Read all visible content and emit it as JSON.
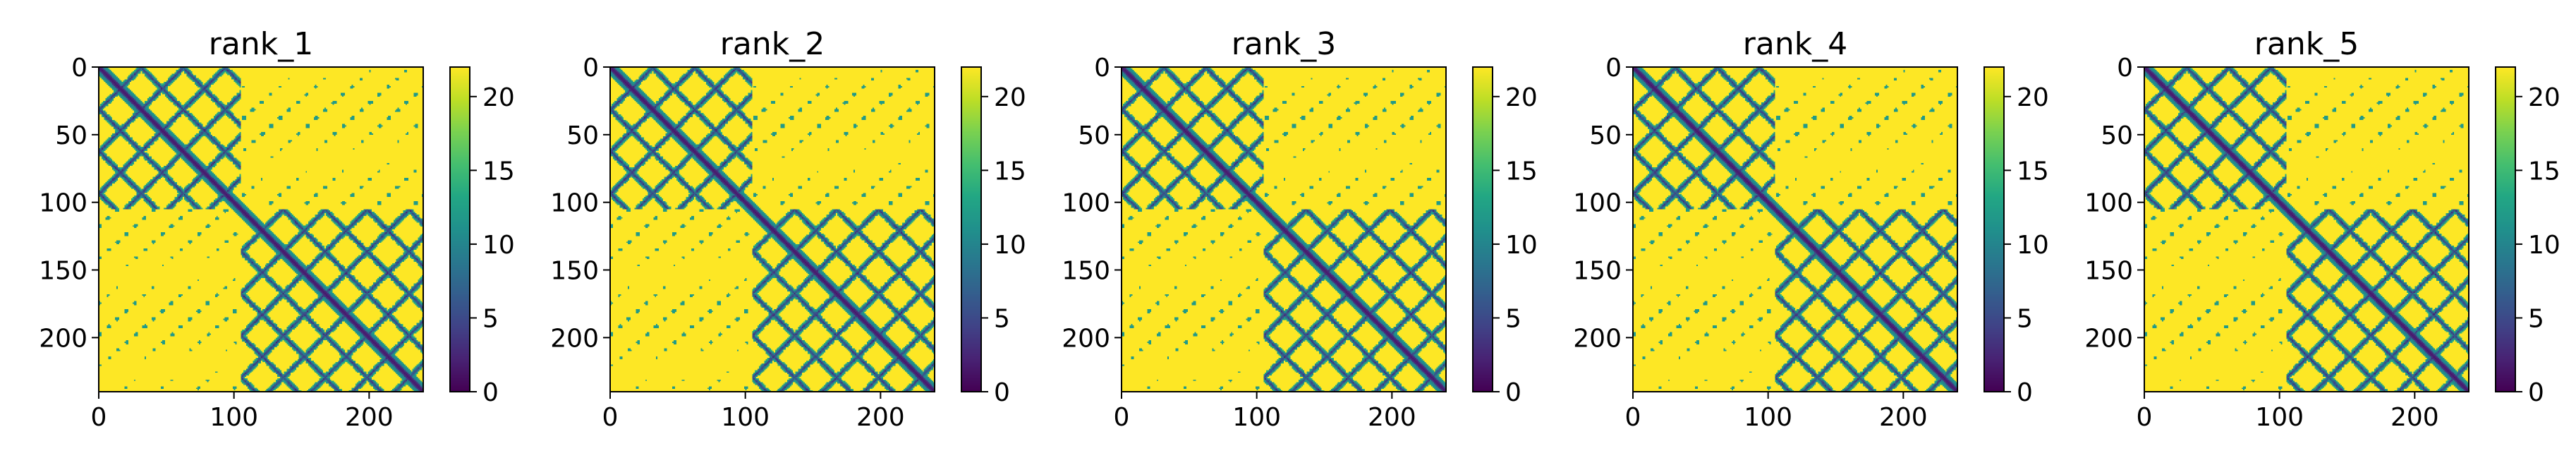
{
  "chart_data": [
    {
      "type": "heatmap",
      "title": "rank_1",
      "matrix_size": 240,
      "xlim": [
        0,
        240
      ],
      "ylim": [
        240,
        0
      ],
      "xticks": [
        0,
        100,
        200
      ],
      "yticks": [
        0,
        50,
        100,
        150,
        200
      ],
      "colorbar": {
        "min": 0,
        "max": 22,
        "ticks": [
          0,
          5,
          10,
          15,
          20
        ],
        "colormap": "viridis"
      },
      "diagonal": "dark line along the main diagonal (near 0)",
      "structure": {
        "domain_boundary": 105,
        "block_1": [
          0,
          105
        ],
        "block_2": [
          105,
          240
        ],
        "off_diagonal_value": "mostly saturated (~22)"
      }
    },
    {
      "type": "heatmap",
      "title": "rank_2",
      "matrix_size": 240,
      "xlim": [
        0,
        240
      ],
      "ylim": [
        240,
        0
      ],
      "xticks": [
        0,
        100,
        200
      ],
      "yticks": [
        0,
        50,
        100,
        150,
        200
      ],
      "colorbar": {
        "min": 0,
        "max": 22,
        "ticks": [
          0,
          5,
          10,
          15,
          20
        ],
        "colormap": "viridis"
      },
      "diagonal": "dark line along the main diagonal (near 0)",
      "structure": {
        "domain_boundary": 105,
        "block_1": [
          0,
          105
        ],
        "block_2": [
          105,
          240
        ],
        "off_diagonal_value": "mostly saturated (~22)"
      }
    },
    {
      "type": "heatmap",
      "title": "rank_3",
      "matrix_size": 240,
      "xlim": [
        0,
        240
      ],
      "ylim": [
        240,
        0
      ],
      "xticks": [
        0,
        100,
        200
      ],
      "yticks": [
        0,
        50,
        100,
        150,
        200
      ],
      "colorbar": {
        "min": 0,
        "max": 22,
        "ticks": [
          0,
          5,
          10,
          15,
          20
        ],
        "colormap": "viridis"
      },
      "diagonal": "dark line along the main diagonal (near 0)",
      "structure": {
        "domain_boundary": 105,
        "block_1": [
          0,
          105
        ],
        "block_2": [
          105,
          240
        ],
        "off_diagonal_value": "mostly saturated (~22)"
      }
    },
    {
      "type": "heatmap",
      "title": "rank_4",
      "matrix_size": 240,
      "xlim": [
        0,
        240
      ],
      "ylim": [
        240,
        0
      ],
      "xticks": [
        0,
        100,
        200
      ],
      "yticks": [
        0,
        50,
        100,
        150,
        200
      ],
      "colorbar": {
        "min": 0,
        "max": 22,
        "ticks": [
          0,
          5,
          10,
          15,
          20
        ],
        "colormap": "viridis"
      },
      "diagonal": "dark line along the main diagonal (near 0)",
      "structure": {
        "domain_boundary": 105,
        "block_1": [
          0,
          105
        ],
        "block_2": [
          105,
          240
        ],
        "off_diagonal_value": "mostly saturated (~22)"
      }
    },
    {
      "type": "heatmap",
      "title": "rank_5",
      "matrix_size": 240,
      "xlim": [
        0,
        240
      ],
      "ylim": [
        240,
        0
      ],
      "xticks": [
        0,
        100,
        200
      ],
      "yticks": [
        0,
        50,
        100,
        150,
        200
      ],
      "colorbar": {
        "min": 0,
        "max": 22,
        "ticks": [
          0,
          5,
          10,
          15,
          20
        ],
        "colormap": "viridis"
      },
      "diagonal": "dark line along the main diagonal (near 0)",
      "structure": {
        "domain_boundary": 105,
        "block_1": [
          0,
          105
        ],
        "block_2": [
          105,
          240
        ],
        "off_diagonal_value": "mostly saturated (~22)"
      }
    }
  ]
}
